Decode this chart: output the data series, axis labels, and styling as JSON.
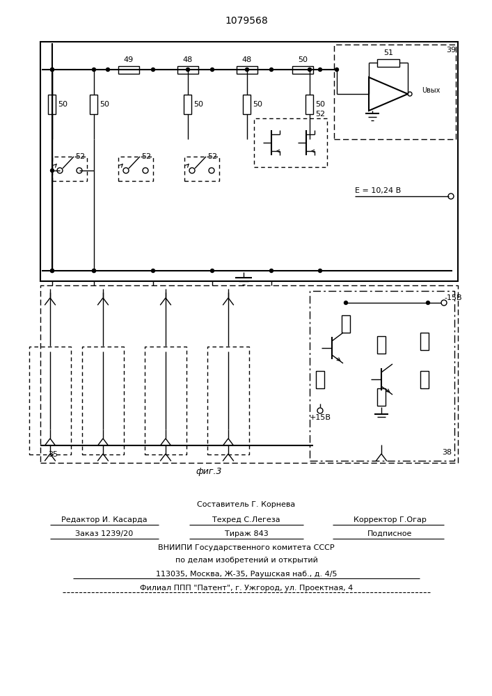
{
  "title": "1079568",
  "fig_label": "фиг.3",
  "background_color": "#ffffff",
  "line_color": "#000000",
  "text_color": "#000000",
  "footer_lines": [
    "Составитель Г. Корнева",
    "Редактор И. Касарда",
    "Техред С.Легеза",
    "Корректор Г.Огар",
    "Заказ 1239/20",
    "Тираж 843",
    "Подписное",
    "ВНИИПИ Государственного комитета СССР",
    "по делам изобретений и открытий",
    "113035, Москва, Ж-35, Раушская наб., д. 4/5",
    "Филиал ППП \"Патент\", г. Ужгород, ул. Проектная, 4"
  ]
}
